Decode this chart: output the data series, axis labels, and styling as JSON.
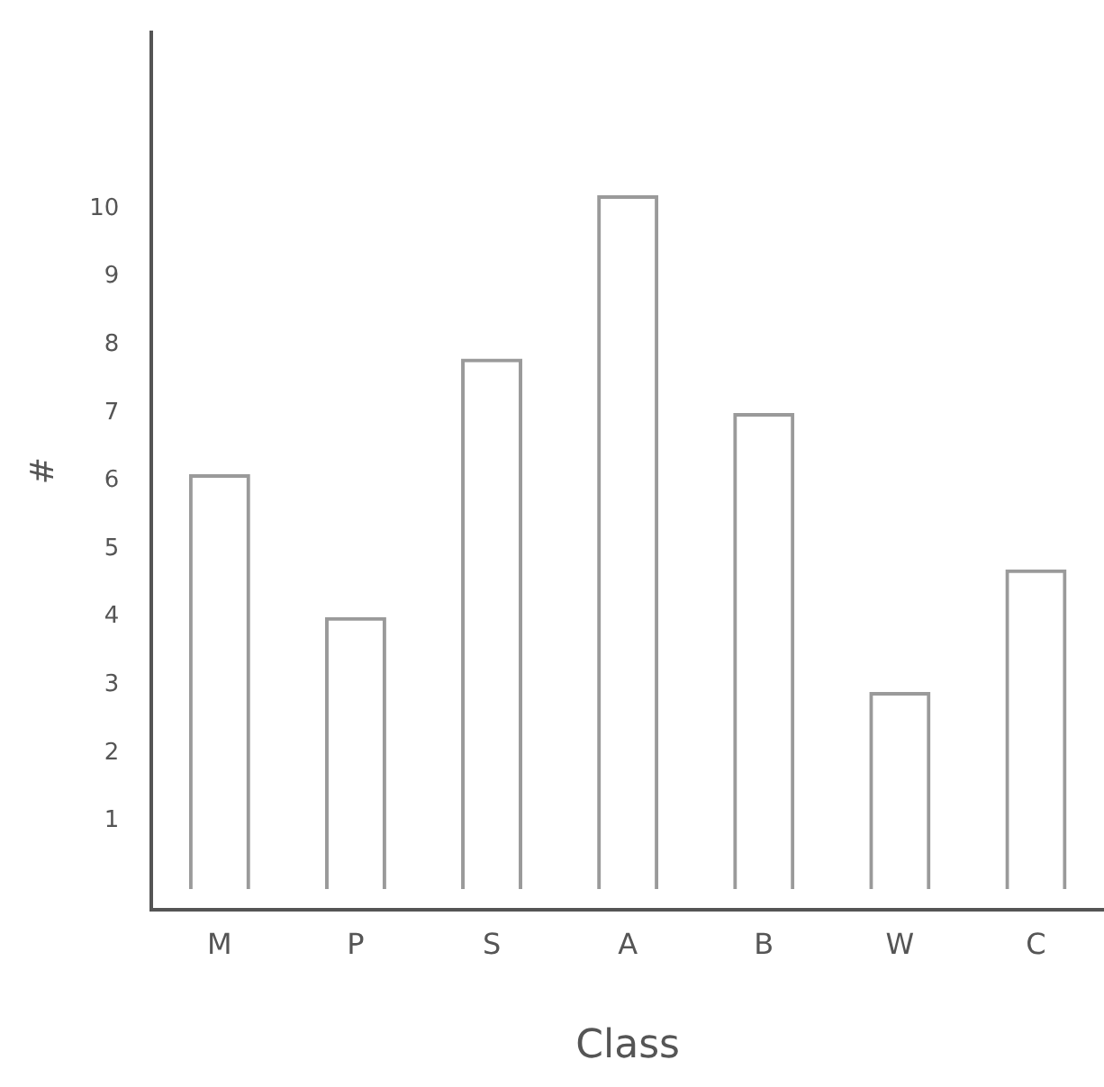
{
  "chart_data": {
    "type": "bar",
    "xlabel": "Class",
    "ylabel": "#",
    "categories": [
      "M",
      "P",
      "S",
      "A",
      "B",
      "W",
      "C"
    ],
    "values": [
      6.1,
      4,
      7.8,
      10.2,
      7,
      2.9,
      4.7
    ],
    "color": "#9a9a9a",
    "ylim": [
      -0.3,
      12.6
    ],
    "yticks": [
      1,
      2,
      3,
      4,
      5,
      6,
      7,
      8,
      9,
      10
    ],
    "grid": false,
    "legend": false
  }
}
